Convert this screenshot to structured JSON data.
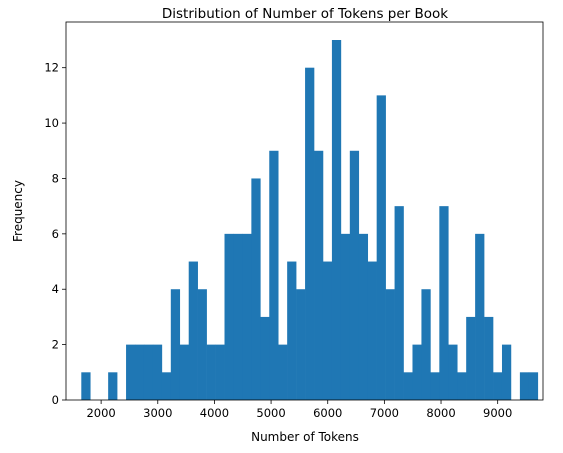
{
  "chart_data": {
    "type": "bar",
    "title": "Distribution of Number of Tokens per Book",
    "xlabel": "Number of Tokens",
    "ylabel": "Frequency",
    "xlim": [
      1380,
      9800
    ],
    "ylim": [
      0,
      13.65
    ],
    "grid": false,
    "x_ticks": [
      2000,
      3000,
      4000,
      5000,
      6000,
      7000,
      8000,
      9000
    ],
    "y_ticks": [
      0,
      2,
      4,
      6,
      8,
      10,
      12
    ],
    "bin_start": 1650,
    "bin_width": 158,
    "counts": [
      1,
      0,
      0,
      1,
      0,
      2,
      2,
      2,
      2,
      1,
      4,
      2,
      5,
      4,
      2,
      2,
      6,
      6,
      6,
      8,
      3,
      9,
      2,
      5,
      4,
      12,
      9,
      5,
      13,
      6,
      9,
      6,
      5,
      11,
      4,
      7,
      1,
      2,
      4,
      1,
      7,
      2,
      1,
      3,
      6,
      3,
      1,
      2,
      0,
      1,
      1
    ],
    "color": "#1f77b4"
  }
}
